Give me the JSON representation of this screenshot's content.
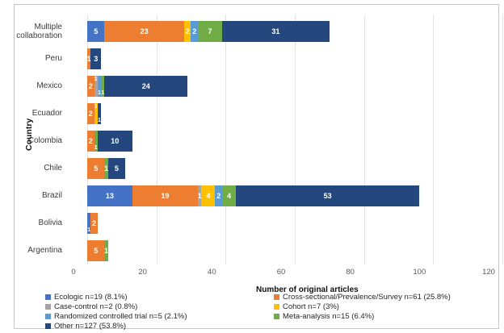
{
  "chart_data": {
    "type": "bar",
    "orientation": "horizontal",
    "stacked": true,
    "xlabel": "Number of original articles",
    "ylabel": "Country",
    "xlim": [
      0,
      120
    ],
    "xticks": [
      0,
      20,
      40,
      60,
      80,
      100,
      120
    ],
    "grid": "vertical-light-gray",
    "legend_position": "bottom-two-columns",
    "series": [
      {
        "id": "ecologic",
        "name": "Ecologic",
        "legend_label": "Ecologic n=19 (8.1%)",
        "color": "#4472C4"
      },
      {
        "id": "cross",
        "name": "Cross-sectional/Prevalence/Survey",
        "legend_label": "Cross-sectional/Prevalence/Survey n=61 (25.8%)",
        "color": "#ED7D31"
      },
      {
        "id": "case",
        "name": "Case-control",
        "legend_label": "Case-control n=2 (0.8%)",
        "color": "#A5A5A5"
      },
      {
        "id": "cohort",
        "name": "Cohort",
        "legend_label": "Cohort n=7 (3%)",
        "color": "#FFC000"
      },
      {
        "id": "rct",
        "name": "Randomized controlled trial",
        "legend_label": "Randomized controlled trial n=5 (2.1%)",
        "color": "#5B9BD5"
      },
      {
        "id": "meta",
        "name": "Meta-analysis",
        "legend_label": "Meta-analysis n=15 (6.4%)",
        "color": "#70AD47"
      },
      {
        "id": "other",
        "name": "Other",
        "legend_label": "Other n=127 (53.8%)",
        "color": "#24487E"
      }
    ],
    "legend_columns": {
      "left": [
        "ecologic",
        "case",
        "rct",
        "other"
      ],
      "right": [
        "cross",
        "cohort",
        "meta"
      ]
    },
    "rows": [
      {
        "category": "Multiple collaboration",
        "segments": [
          {
            "series": "ecologic",
            "value": 5
          },
          {
            "series": "cross",
            "value": 23
          },
          {
            "series": "cohort",
            "value": 2
          },
          {
            "series": "rct",
            "value": 2
          },
          {
            "series": "meta",
            "value": 7
          },
          {
            "series": "other",
            "value": 31
          }
        ]
      },
      {
        "category": "Peru",
        "segments": [
          {
            "series": "cross",
            "value": 1
          },
          {
            "series": "other",
            "value": 3
          }
        ]
      },
      {
        "category": "Mexico",
        "segments": [
          {
            "series": "cross",
            "value": 2
          },
          {
            "series": "case",
            "value": 1,
            "lp": "u"
          },
          {
            "series": "rct",
            "value": 1,
            "lp": "d"
          },
          {
            "series": "meta",
            "value": 1,
            "lp": "d"
          },
          {
            "series": "other",
            "value": 24
          }
        ]
      },
      {
        "category": "Ecuador",
        "segments": [
          {
            "series": "cross",
            "value": 2
          },
          {
            "series": "cohort",
            "value": 1,
            "lp": "u"
          },
          {
            "series": "other",
            "value": 1,
            "lp": "d"
          }
        ]
      },
      {
        "category": "Colombia",
        "segments": [
          {
            "series": "cross",
            "value": 2
          },
          {
            "series": "meta",
            "value": 1,
            "lp": "d"
          },
          {
            "series": "other",
            "value": 10
          }
        ]
      },
      {
        "category": "Chile",
        "segments": [
          {
            "series": "cross",
            "value": 5
          },
          {
            "series": "meta",
            "value": 1
          },
          {
            "series": "other",
            "value": 5
          }
        ]
      },
      {
        "category": "Brazil",
        "segments": [
          {
            "series": "ecologic",
            "value": 13
          },
          {
            "series": "cross",
            "value": 19
          },
          {
            "series": "case",
            "value": 1
          },
          {
            "series": "cohort",
            "value": 4
          },
          {
            "series": "rct",
            "value": 2
          },
          {
            "series": "meta",
            "value": 4
          },
          {
            "series": "other",
            "value": 53
          }
        ]
      },
      {
        "category": "Bolivia",
        "segments": [
          {
            "series": "ecologic",
            "value": 1,
            "lp": "d"
          },
          {
            "series": "cross",
            "value": 2
          }
        ]
      },
      {
        "category": "Argentina",
        "segments": [
          {
            "series": "cross",
            "value": 5
          },
          {
            "series": "meta",
            "value": 1
          }
        ]
      }
    ]
  }
}
